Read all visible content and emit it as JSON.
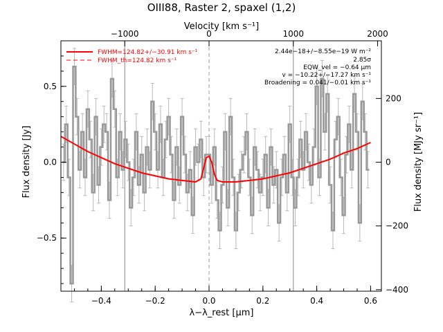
{
  "chart_data": {
    "type": "line",
    "title": "OIII88, Raster 2, spaxel (1,2)",
    "xlabel": "λ−λ_rest [μm]",
    "ylabel": "Flux density [Jy]",
    "x2label": "Velocity [km s⁻¹]",
    "y2label": "Flux density [MJy sr⁻¹]",
    "xlim": [
      -0.55,
      0.64
    ],
    "ylim": [
      -0.85,
      0.8
    ],
    "x_ticks": [
      -0.4,
      -0.2,
      0.0,
      0.2,
      0.4,
      0.6
    ],
    "x_tick_labels": [
      "−0.4",
      "−0.2",
      "0.0",
      "0.2",
      "0.4",
      "0.6"
    ],
    "y_ticks": [
      -0.5,
      0.0,
      0.5
    ],
    "y_tick_labels": [
      "−0.5",
      "0.0",
      "0.5"
    ],
    "x2_ticks_um": [
      -0.313,
      0.0,
      0.313,
      0.626
    ],
    "x2_tick_labels": [
      "−1000",
      "0",
      "1000",
      "2000"
    ],
    "y2_ticks_jy": [
      0.42,
      0.0,
      -0.42,
      -0.84
    ],
    "y2_tick_labels": [
      "200",
      "0",
      "−200",
      "−400"
    ],
    "vertical_lines": [
      -0.313,
      0.313
    ],
    "rest_line": 0.0,
    "legend": [
      {
        "label": "FWHM=124.82+/−30.91 km s⁻¹",
        "style": "solid",
        "color": "#ff0000"
      },
      {
        "label": "FWHM_th=124.82 km s⁻¹",
        "style": "dashed",
        "color": "#ff0000"
      }
    ],
    "legend_position": "top-left",
    "annotations": [
      "2.44e−18+/−8.55e−19 W m⁻²",
      "2.85σ",
      "EQW_vel = −0.64 μm",
      "v = −10.22+/−17.27 km s⁻¹",
      "Broadening = 0.041/−0.01 km s⁻¹"
    ],
    "series": [
      {
        "name": "Spectrum",
        "color": "#999999",
        "style": "steps",
        "x": [
          -0.54,
          -0.53,
          -0.52,
          -0.51,
          -0.5,
          -0.49,
          -0.48,
          -0.47,
          -0.46,
          -0.45,
          -0.44,
          -0.43,
          -0.42,
          -0.41,
          -0.4,
          -0.39,
          -0.38,
          -0.37,
          -0.36,
          -0.35,
          -0.34,
          -0.33,
          -0.32,
          -0.31,
          -0.3,
          -0.29,
          -0.28,
          -0.27,
          -0.26,
          -0.25,
          -0.24,
          -0.23,
          -0.22,
          -0.21,
          -0.2,
          -0.19,
          -0.18,
          -0.17,
          -0.16,
          -0.15,
          -0.14,
          -0.13,
          -0.12,
          -0.11,
          -0.1,
          -0.09,
          -0.08,
          -0.07,
          -0.06,
          -0.05,
          -0.04,
          -0.03,
          -0.02,
          -0.01,
          0.0,
          0.01,
          0.02,
          0.03,
          0.04,
          0.05,
          0.06,
          0.07,
          0.08,
          0.09,
          0.1,
          0.11,
          0.12,
          0.13,
          0.14,
          0.15,
          0.16,
          0.17,
          0.18,
          0.19,
          0.2,
          0.21,
          0.22,
          0.23,
          0.24,
          0.25,
          0.26,
          0.27,
          0.28,
          0.29,
          0.3,
          0.31,
          0.32,
          0.33,
          0.34,
          0.35,
          0.36,
          0.37,
          0.38,
          0.39,
          0.4,
          0.41,
          0.42,
          0.43,
          0.44,
          0.45,
          0.46,
          0.47,
          0.48,
          0.49,
          0.5,
          0.51,
          0.52,
          0.53,
          0.54,
          0.55,
          0.56,
          0.57,
          0.58,
          0.59
        ],
        "y": [
          0.0,
          0.25,
          -0.1,
          -0.8,
          0.63,
          0.3,
          -0.05,
          0.2,
          -0.1,
          0.35,
          0.15,
          -0.2,
          0.3,
          -0.15,
          0.1,
          0.25,
          0.2,
          -0.25,
          0.55,
          0.35,
          -0.1,
          0.2,
          -0.05,
          0.15,
          0.0,
          -0.3,
          -0.1,
          0.2,
          -0.15,
          0.05,
          -0.2,
          0.1,
          -0.05,
          0.4,
          0.2,
          -0.05,
          0.25,
          -0.1,
          0.15,
          0.3,
          0.05,
          -0.25,
          0.1,
          -0.15,
          0.3,
          0.05,
          -0.2,
          -0.05,
          -0.35,
          0.1,
          0.0,
          0.15,
          -0.1,
          0.05,
          0.05,
          -0.15,
          0.1,
          -0.25,
          -0.45,
          -0.15,
          0.2,
          -0.3,
          0.3,
          -0.1,
          -0.45,
          -0.2,
          -0.05,
          0.05,
          0.2,
          -0.1,
          -0.35,
          0.1,
          -0.05,
          -0.2,
          -0.1,
          0.05,
          -0.3,
          0.1,
          -0.15,
          -0.05,
          -0.4,
          -0.1,
          0.05,
          -0.2,
          0.25,
          -0.1,
          -0.3,
          -0.1,
          0.15,
          -0.05,
          0.2,
          0.0,
          -0.15,
          0.1,
          0.5,
          -0.1,
          0.55,
          0.2,
          0.45,
          -0.15,
          -0.45,
          0.15,
          0.3,
          -0.1,
          -0.35,
          0.05,
          0.25,
          -0.05,
          0.45,
          0.2,
          -0.4,
          0.4,
          0.2,
          -0.05
        ]
      },
      {
        "name": "Fit",
        "color": "#ff0000",
        "style": "line",
        "x": [
          -0.55,
          -0.5,
          -0.45,
          -0.4,
          -0.35,
          -0.3,
          -0.25,
          -0.2,
          -0.15,
          -0.1,
          -0.05,
          -0.03,
          -0.02,
          -0.01,
          0.0,
          0.01,
          0.02,
          0.03,
          0.05,
          0.1,
          0.15,
          0.2,
          0.25,
          0.3,
          0.35,
          0.4,
          0.45,
          0.5,
          0.55,
          0.6
        ],
        "y": [
          0.17,
          0.12,
          0.07,
          0.03,
          -0.01,
          -0.04,
          -0.07,
          -0.09,
          -0.11,
          -0.12,
          -0.13,
          -0.11,
          -0.04,
          0.03,
          0.04,
          0.0,
          -0.08,
          -0.12,
          -0.13,
          -0.13,
          -0.12,
          -0.11,
          -0.09,
          -0.07,
          -0.04,
          -0.01,
          0.02,
          0.06,
          0.09,
          0.13
        ]
      }
    ]
  }
}
